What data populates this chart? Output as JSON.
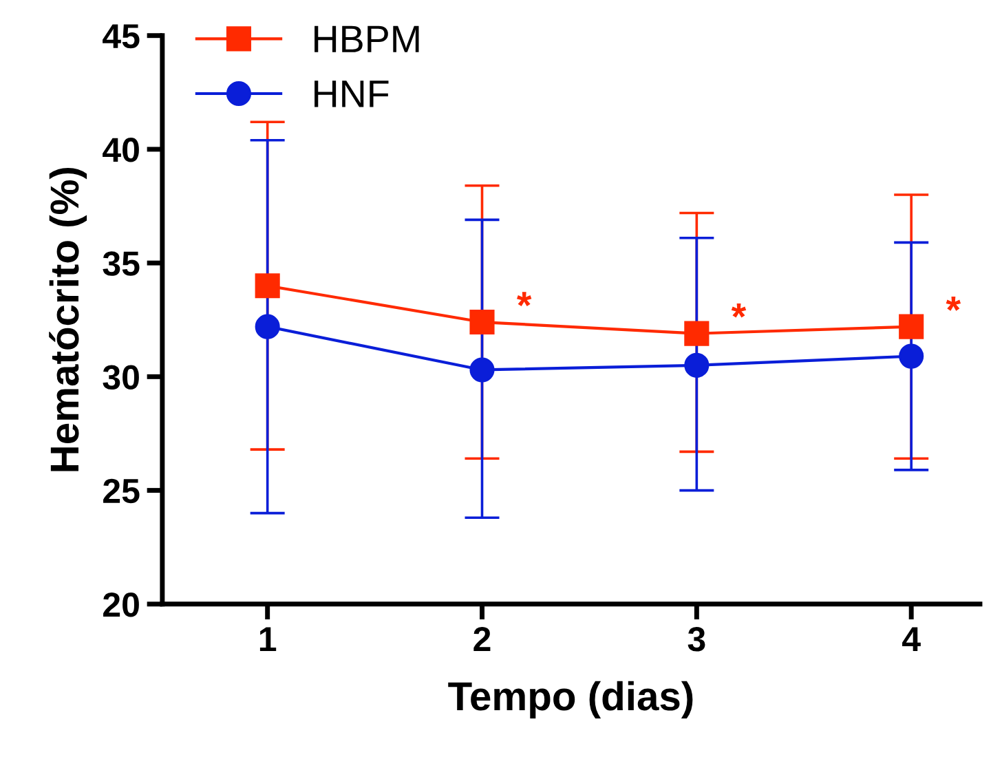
{
  "chart_data": {
    "type": "line",
    "xlabel": "Tempo (dias)",
    "ylabel": "Hematócrito (%)",
    "categories": [
      "1",
      "2",
      "3",
      "4"
    ],
    "series": [
      {
        "name": "HBPM",
        "color": "#ff2a00",
        "marker": "square",
        "values": [
          34.0,
          32.4,
          31.9,
          32.2
        ],
        "errors": [
          [
            26.8,
            41.2
          ],
          [
            26.4,
            38.4
          ],
          [
            26.7,
            37.2
          ],
          [
            26.4,
            38.0
          ]
        ]
      },
      {
        "name": "HNF",
        "color": "#0a1ed8",
        "marker": "circle",
        "values": [
          32.2,
          30.3,
          30.5,
          30.9
        ],
        "errors": [
          [
            24.0,
            40.4
          ],
          [
            23.8,
            36.9
          ],
          [
            25.0,
            36.1
          ],
          [
            25.9,
            35.9
          ]
        ]
      }
    ],
    "annotations": [
      {
        "text": "*",
        "x": "2",
        "y": 33.0
      },
      {
        "text": "*",
        "x": "3",
        "y": 32.5
      },
      {
        "text": "*",
        "x": "4",
        "y": 32.8
      }
    ],
    "ylim": [
      20,
      45
    ],
    "yticks": [
      20,
      25,
      30,
      35,
      40,
      45
    ],
    "grid": false,
    "legend": "top left",
    "line_style": "solid"
  }
}
